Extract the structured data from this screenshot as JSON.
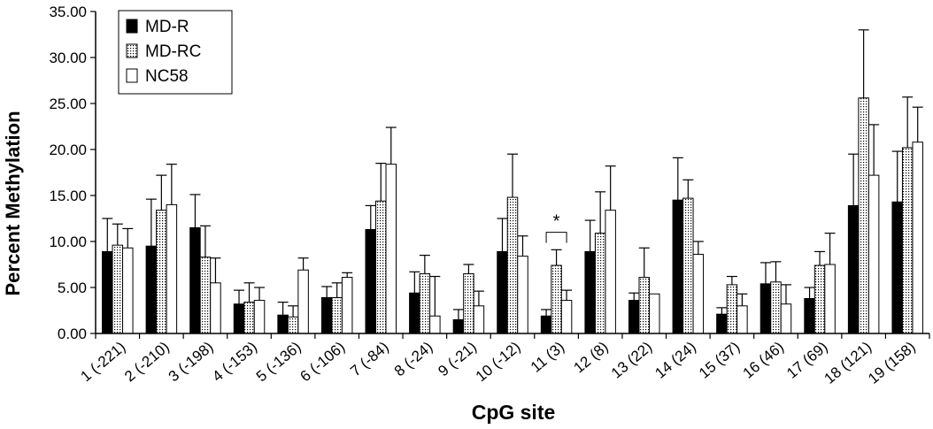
{
  "chart_data": {
    "type": "bar",
    "title": "",
    "xlabel": "CpG site",
    "ylabel": "Percent Methylation",
    "ylim": [
      0,
      35
    ],
    "yticks": [
      "0.00",
      "5.00",
      "10.00",
      "15.00",
      "20.00",
      "25.00",
      "30.00",
      "35.00"
    ],
    "grid": false,
    "legend_position": "top-left",
    "categories": [
      "1 (-221)",
      "2 (-210)",
      "3 (-198)",
      "4 (-153)",
      "5 (-136)",
      "6 (-106)",
      "7 (-84)",
      "8 (-24)",
      "9 (-21)",
      "10 (-12)",
      "11 (3)",
      "12 (8)",
      "13 (22)",
      "14 (24)",
      "15 (37)",
      "16 (46)",
      "17 (69)",
      "18 (121)",
      "19 (158)"
    ],
    "series": [
      {
        "name": "MD-R",
        "pattern": "solid",
        "values": [
          8.9,
          9.5,
          11.5,
          3.2,
          2.0,
          3.9,
          11.3,
          4.4,
          1.5,
          8.9,
          1.9,
          8.9,
          3.6,
          14.5,
          2.1,
          5.4,
          3.8,
          13.9,
          14.3
        ],
        "errors": [
          3.6,
          5.1,
          3.6,
          1.5,
          1.4,
          1.2,
          2.6,
          2.3,
          1.1,
          3.6,
          0.7,
          3.4,
          0.8,
          4.6,
          0.7,
          2.3,
          1.2,
          5.6,
          5.5
        ]
      },
      {
        "name": "MD-RC",
        "pattern": "dotted",
        "values": [
          9.6,
          13.4,
          8.3,
          3.4,
          1.8,
          3.9,
          14.4,
          6.5,
          6.5,
          14.8,
          7.4,
          10.9,
          6.1,
          14.7,
          5.3,
          5.6,
          7.4,
          25.6,
          20.2
        ],
        "errors": [
          2.3,
          3.8,
          3.4,
          2.1,
          1.2,
          1.6,
          4.1,
          2.0,
          1.0,
          4.7,
          1.7,
          4.5,
          3.2,
          2.0,
          0.9,
          2.2,
          1.5,
          7.4,
          5.5
        ]
      },
      {
        "name": "NC58",
        "pattern": "white",
        "values": [
          9.3,
          14.0,
          5.5,
          3.6,
          6.9,
          6.1,
          18.4,
          1.9,
          3.0,
          8.4,
          3.6,
          13.4,
          4.3,
          8.6,
          3.0,
          3.2,
          7.5,
          17.2,
          20.8
        ],
        "errors": [
          2.1,
          4.4,
          2.7,
          1.4,
          1.3,
          0.5,
          4.0,
          4.3,
          1.6,
          2.2,
          1.1,
          4.8,
          0.0,
          1.4,
          1.3,
          2.1,
          3.4,
          5.5,
          3.8
        ]
      }
    ],
    "annotations": [
      {
        "text": "*",
        "category": "11 (3)"
      }
    ]
  }
}
